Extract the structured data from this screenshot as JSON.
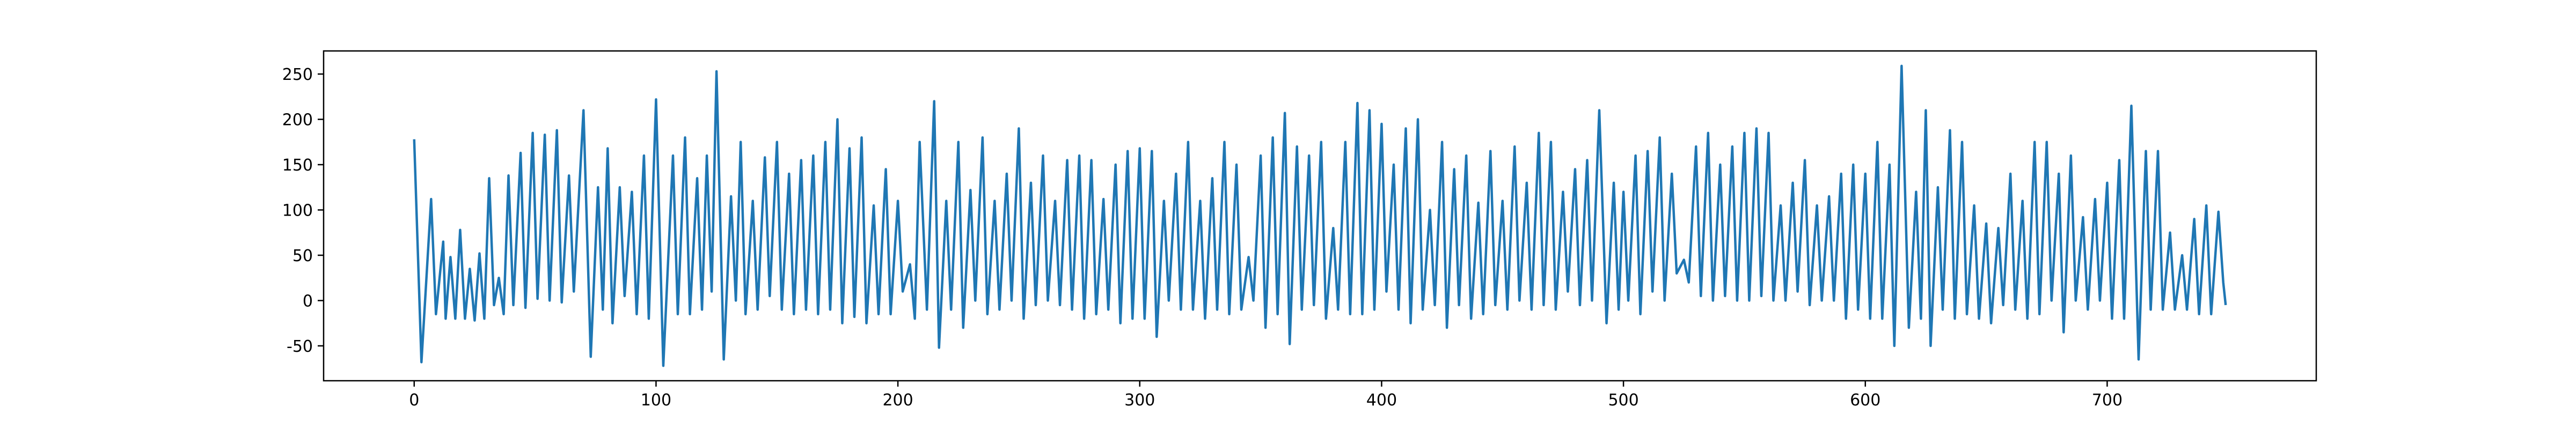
{
  "chart_data": {
    "type": "line",
    "color": "#1f77b4",
    "xlim": [
      -37.45,
      786.45
    ],
    "ylim": [
      -88.5,
      275.5
    ],
    "xticks": [
      0,
      100,
      200,
      300,
      400,
      500,
      600,
      700
    ],
    "yticks": [
      -50,
      0,
      50,
      100,
      150,
      200,
      250
    ],
    "grid": false,
    "x": [
      0,
      3,
      7,
      9,
      12,
      13,
      15,
      17,
      19,
      21,
      23,
      25,
      27,
      29,
      31,
      33,
      35,
      37,
      39,
      41,
      44,
      46,
      49,
      51,
      54,
      56,
      59,
      61,
      64,
      66,
      70,
      73,
      76,
      78,
      80,
      82,
      85,
      87,
      90,
      92,
      95,
      97,
      100,
      103,
      107,
      109,
      112,
      114,
      117,
      119,
      121,
      123,
      125,
      128,
      131,
      133,
      135,
      137,
      140,
      142,
      145,
      147,
      150,
      152,
      155,
      157,
      160,
      162,
      165,
      167,
      170,
      172,
      175,
      177,
      180,
      182,
      185,
      187,
      190,
      192,
      195,
      197,
      200,
      202,
      205,
      207,
      209,
      212,
      215,
      217,
      220,
      222,
      225,
      227,
      230,
      232,
      235,
      237,
      240,
      242,
      245,
      247,
      250,
      252,
      255,
      257,
      260,
      262,
      265,
      267,
      270,
      272,
      275,
      277,
      280,
      282,
      285,
      287,
      290,
      292,
      295,
      297,
      300,
      302,
      305,
      307,
      310,
      312,
      315,
      317,
      320,
      322,
      325,
      327,
      330,
      332,
      335,
      337,
      340,
      342,
      345,
      347,
      350,
      352,
      355,
      357,
      360,
      362,
      365,
      367,
      370,
      372,
      375,
      377,
      380,
      382,
      385,
      387,
      390,
      392,
      395,
      397,
      400,
      402,
      405,
      407,
      410,
      412,
      415,
      417,
      420,
      422,
      425,
      427,
      430,
      432,
      435,
      437,
      440,
      442,
      445,
      447,
      450,
      452,
      455,
      457,
      460,
      462,
      465,
      467,
      470,
      472,
      475,
      477,
      480,
      482,
      485,
      487,
      490,
      493,
      496,
      498,
      500,
      502,
      505,
      507,
      510,
      512,
      515,
      517,
      520,
      522,
      525,
      527,
      530,
      532,
      535,
      537,
      540,
      542,
      545,
      547,
      550,
      552,
      555,
      557,
      560,
      562,
      565,
      567,
      570,
      572,
      575,
      577,
      580,
      582,
      585,
      587,
      590,
      592,
      595,
      597,
      600,
      602,
      605,
      607,
      610,
      612,
      615,
      618,
      621,
      623,
      625,
      627,
      630,
      632,
      635,
      637,
      640,
      642,
      645,
      647,
      650,
      652,
      655,
      657,
      660,
      662,
      665,
      667,
      670,
      672,
      675,
      677,
      680,
      682,
      685,
      687,
      690,
      692,
      695,
      697,
      700,
      702,
      705,
      707,
      710,
      713,
      716,
      718,
      721,
      723,
      726,
      728,
      731,
      733,
      736,
      738,
      741,
      743,
      746,
      748,
      749
    ],
    "values": [
      178,
      -68,
      112,
      -15,
      65,
      -20,
      48,
      -20,
      78,
      -20,
      35,
      -22,
      52,
      -20,
      135,
      -5,
      25,
      -15,
      138,
      -5,
      163,
      -8,
      185,
      2,
      183,
      0,
      188,
      -2,
      138,
      10,
      210,
      -62,
      125,
      -10,
      168,
      -25,
      125,
      5,
      120,
      -15,
      160,
      -20,
      222,
      -72,
      160,
      -15,
      180,
      -15,
      135,
      -10,
      160,
      10,
      253,
      -65,
      115,
      0,
      175,
      -15,
      110,
      -10,
      158,
      5,
      175,
      -10,
      140,
      -15,
      155,
      -10,
      160,
      -15,
      175,
      -10,
      200,
      -25,
      168,
      -18,
      180,
      -25,
      105,
      -15,
      145,
      -15,
      110,
      10,
      40,
      -20,
      175,
      -10,
      220,
      -52,
      110,
      -10,
      175,
      -30,
      122,
      0,
      180,
      -15,
      110,
      -10,
      140,
      0,
      190,
      -20,
      130,
      -5,
      160,
      0,
      110,
      -5,
      155,
      -10,
      160,
      -20,
      155,
      -15,
      112,
      -10,
      150,
      -25,
      165,
      -20,
      168,
      -20,
      165,
      -40,
      110,
      0,
      140,
      -10,
      175,
      -10,
      110,
      -20,
      135,
      -10,
      175,
      -15,
      150,
      -10,
      48,
      0,
      160,
      -30,
      180,
      -15,
      207,
      -48,
      170,
      -10,
      160,
      -5,
      175,
      -20,
      80,
      -10,
      175,
      -15,
      218,
      -15,
      210,
      -10,
      195,
      10,
      150,
      -10,
      190,
      -25,
      200,
      -10,
      100,
      -5,
      175,
      -30,
      145,
      -5,
      160,
      -20,
      108,
      -15,
      165,
      -5,
      110,
      -10,
      170,
      0,
      130,
      -10,
      185,
      -5,
      175,
      -10,
      120,
      10,
      145,
      -5,
      155,
      0,
      210,
      -25,
      130,
      -10,
      120,
      0,
      160,
      -15,
      165,
      10,
      180,
      0,
      140,
      30,
      45,
      20,
      170,
      5,
      185,
      0,
      150,
      5,
      170,
      0,
      185,
      0,
      190,
      5,
      185,
      0,
      105,
      0,
      130,
      10,
      155,
      -5,
      105,
      0,
      115,
      0,
      140,
      -20,
      150,
      -10,
      140,
      -20,
      175,
      -20,
      150,
      -50,
      259,
      -30,
      120,
      -20,
      210,
      -50,
      125,
      -10,
      188,
      -20,
      175,
      -15,
      105,
      -20,
      85,
      -25,
      80,
      -5,
      140,
      -10,
      110,
      -20,
      175,
      -15,
      175,
      0,
      140,
      -35,
      160,
      0,
      92,
      -10,
      112,
      0,
      130,
      -20,
      155,
      -20,
      215,
      -65,
      165,
      -10,
      165,
      -10,
      75,
      -10,
      50,
      -10,
      90,
      -15,
      105,
      -15,
      98,
      20,
      -5
    ]
  }
}
